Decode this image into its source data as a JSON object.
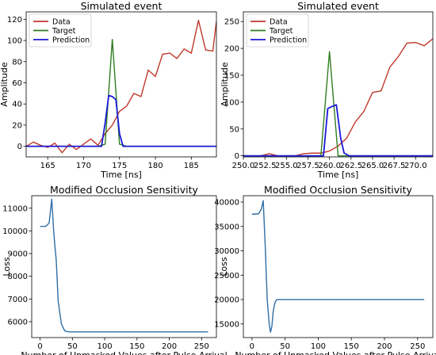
{
  "chart_data": [
    {
      "type": "line",
      "title": "Simulated event",
      "xlabel": "Time [ns]",
      "ylabel": "Amplitude",
      "xlim": [
        162,
        188.5
      ],
      "ylim": [
        -10,
        127
      ],
      "xticks": [
        165,
        170,
        175,
        180,
        185
      ],
      "xtick_labels": [
        "165",
        "170",
        "175",
        "180",
        "185"
      ],
      "yticks": [
        0,
        20,
        40,
        60,
        80,
        100,
        120
      ],
      "ytick_labels": [
        "0",
        "20",
        "40",
        "60",
        "80",
        "100",
        "120"
      ],
      "legend_position": "upper-left",
      "series": [
        {
          "name": "Data",
          "color": "#c0392b",
          "x": [
            162,
            163,
            164,
            165,
            166,
            167,
            168,
            169,
            170,
            171,
            172,
            173,
            174,
            175,
            176,
            177,
            178,
            179,
            180,
            181,
            182,
            183,
            184,
            185,
            186,
            187,
            188,
            188.5
          ],
          "y": [
            0,
            4,
            1,
            -1,
            3,
            -6,
            2,
            -3,
            2,
            7,
            1,
            12,
            20,
            33,
            38,
            50,
            47,
            72,
            66,
            87,
            88,
            83,
            92,
            88,
            119,
            91,
            90,
            118
          ]
        },
        {
          "name": "Target",
          "color": "#2e7d1f",
          "x": [
            162,
            172,
            173,
            174,
            175,
            176,
            188.5
          ],
          "y": [
            0,
            0,
            2,
            101,
            2,
            0,
            0
          ]
        },
        {
          "name": "Prediction",
          "color": "#1a1ad6",
          "x": [
            162,
            172.5,
            173,
            173.5,
            174,
            174.5,
            175,
            175.5,
            188.5
          ],
          "y": [
            0,
            0,
            22,
            48,
            47,
            44,
            12,
            0,
            0
          ]
        }
      ]
    },
    {
      "type": "line",
      "title": "Simulated event",
      "xlabel": "Time [ns]",
      "ylabel": "Amplitude",
      "xlim": [
        250,
        272
      ],
      "ylim": [
        -2,
        268
      ],
      "xticks": [
        250,
        252.5,
        255,
        257.5,
        260,
        262.5,
        265,
        267.5,
        270
      ],
      "xtick_labels": [
        "250.0",
        "252.5",
        "255.0",
        "257.5",
        "260.0",
        "262.5",
        "265.0",
        "267.5",
        "270.0"
      ],
      "yticks": [
        0,
        50,
        100,
        150,
        200,
        250
      ],
      "ytick_labels": [
        "0",
        "50",
        "100",
        "150",
        "200",
        "250"
      ],
      "legend_position": "upper-left",
      "series": [
        {
          "name": "Data",
          "color": "#c0392b",
          "x": [
            250,
            252,
            253,
            254,
            256,
            257,
            258,
            259,
            260,
            261,
            262,
            263,
            264,
            265,
            266,
            267,
            268,
            269,
            270,
            271,
            272
          ],
          "y": [
            0,
            0,
            4,
            0,
            0,
            4,
            5,
            5,
            9,
            18,
            33,
            63,
            83,
            118,
            121,
            165,
            185,
            210,
            211,
            205,
            218
          ]
        },
        {
          "name": "Target",
          "color": "#2e7d1f",
          "x": [
            250,
            259,
            260,
            261,
            272
          ],
          "y": [
            0,
            0,
            194,
            0,
            0
          ]
        },
        {
          "name": "Prediction",
          "color": "#1a1ad6",
          "x": [
            250,
            259.3,
            259.8,
            260.3,
            260.8,
            261.3,
            261.7,
            262.3,
            272
          ],
          "y": [
            0,
            0,
            88,
            92,
            95,
            33,
            5,
            0,
            0
          ]
        }
      ]
    },
    {
      "type": "line",
      "title": "Modified Occlusion Sensitivity",
      "xlabel": "Number of Unmasked Values after Pulse Arrival",
      "ylabel": "Loss",
      "xlim": [
        -13,
        273
      ],
      "ylim": [
        5300,
        11550
      ],
      "xticks": [
        0,
        50,
        100,
        150,
        200,
        250
      ],
      "xtick_labels": [
        "0",
        "50",
        "100",
        "150",
        "200",
        "250"
      ],
      "yticks": [
        6000,
        7000,
        8000,
        9000,
        10000,
        11000
      ],
      "ytick_labels": [
        "6000",
        "7000",
        "8000",
        "9000",
        "10000",
        "11000"
      ],
      "series": [
        {
          "color": "#2e6ea6",
          "x": [
            0,
            8,
            10,
            14,
            18,
            21,
            23,
            25,
            28,
            33,
            38,
            42,
            48,
            60,
            100,
            150,
            200,
            260
          ],
          "y": [
            10200,
            10200,
            10230,
            10350,
            11400,
            10000,
            9300,
            8700,
            6900,
            5900,
            5600,
            5560,
            5550,
            5550,
            5550,
            5550,
            5550,
            5550
          ]
        }
      ]
    },
    {
      "type": "line",
      "title": "Modified Occlusion Sensitivity",
      "xlabel": "Number of Unmasked Values after Pulse Arrival",
      "ylabel": "Loss",
      "xlim": [
        -13,
        273
      ],
      "ylim": [
        12200,
        41300
      ],
      "xticks": [
        0,
        50,
        100,
        150,
        200,
        250
      ],
      "xtick_labels": [
        "0",
        "50",
        "100",
        "150",
        "200",
        "250"
      ],
      "yticks": [
        15000,
        20000,
        25000,
        30000,
        35000,
        40000
      ],
      "ytick_labels": [
        "15000",
        "20000",
        "25000",
        "30000",
        "35000",
        "40000"
      ],
      "series": [
        {
          "color": "#2e6ea6",
          "x": [
            0,
            10,
            14,
            17,
            20,
            23,
            26,
            28,
            30,
            32,
            34,
            36,
            38,
            40,
            45,
            50,
            60,
            100,
            150,
            200,
            260
          ],
          "y": [
            37500,
            37600,
            38500,
            40300,
            31000,
            20000,
            15000,
            13300,
            14500,
            17500,
            19000,
            19800,
            20000,
            20000,
            20000,
            20000,
            20000,
            20000,
            20000,
            20000,
            20000
          ]
        }
      ]
    }
  ]
}
